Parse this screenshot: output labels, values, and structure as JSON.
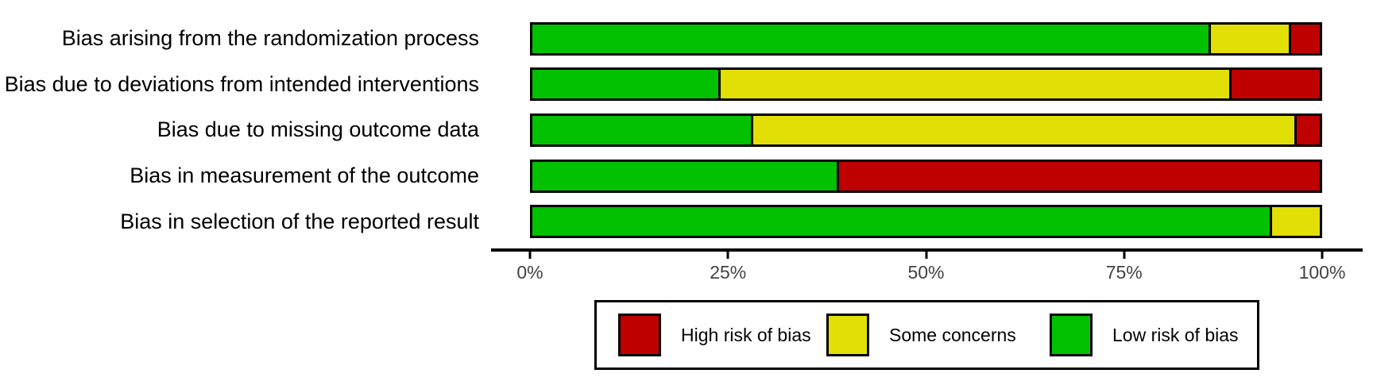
{
  "chart_data": {
    "type": "bar",
    "orientation": "horizontal",
    "stacked": true,
    "unit": "percent",
    "title": "",
    "xlabel": "",
    "ylabel": "",
    "xlim": [
      0,
      100
    ],
    "x_ticks": [
      "0%",
      "25%",
      "50%",
      "75%",
      "100%"
    ],
    "grid": false,
    "categories": [
      "Bias arising from the randomization process",
      "Bias due to deviations from intended interventions",
      "Bias due to missing outcome data",
      "Bias in measurement of the outcome",
      "Bias in selection of the reported result"
    ],
    "series": [
      {
        "name": "Low risk of bias",
        "color": "#02C100",
        "values": [
          85.9,
          23.6,
          27.7,
          38.6,
          93.6
        ]
      },
      {
        "name": "Some concerns",
        "color": "#E2DF07",
        "values": [
          10.2,
          64.9,
          69.1,
          0.0,
          6.4
        ]
      },
      {
        "name": "High risk of bias",
        "color": "#BF0000",
        "values": [
          3.9,
          11.5,
          3.2,
          61.4,
          0.0
        ]
      }
    ],
    "legend": {
      "position": "bottom",
      "entries": [
        {
          "label": "High risk of bias",
          "color": "#BF0000"
        },
        {
          "label": "Some concerns",
          "color": "#E2DF07"
        },
        {
          "label": "Low risk of bias",
          "color": "#02C100"
        }
      ]
    },
    "colors": {
      "bar_border": "#000000",
      "axis_line": "#000000",
      "tick_text": "#424242",
      "label_text": "#000000",
      "background": "#ffffff"
    }
  }
}
